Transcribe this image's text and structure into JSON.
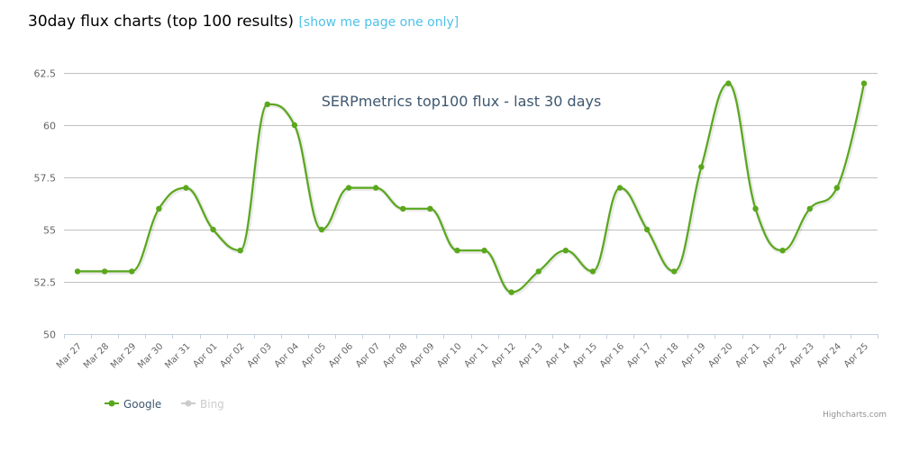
{
  "header": {
    "title": "30day flux charts (top 100 results)",
    "link_label": "[show me page one only]"
  },
  "colors": {
    "google": "#5aa71c",
    "bing_disabled": "#cccccc",
    "grid": "#c0c0c0",
    "axis": "#c0d0e0",
    "link": "#4fc1e9",
    "title_text": "#3e576f",
    "label_text": "#666666"
  },
  "credits": "Highcharts.com",
  "chart_data": {
    "type": "line",
    "title": "SERPmetrics top100 flux - last 30 days",
    "xlabel": "",
    "ylabel": "",
    "ylim": [
      50,
      62.5
    ],
    "yticks": [
      50,
      52.5,
      55,
      57.5,
      60,
      62.5
    ],
    "grid": true,
    "legend_position": "bottom-left",
    "categories": [
      "Mar 27",
      "Mar 28",
      "Mar 29",
      "Mar 30",
      "Mar 31",
      "Apr 01",
      "Apr 02",
      "Apr 03",
      "Apr 04",
      "Apr 05",
      "Apr 06",
      "Apr 07",
      "Apr 08",
      "Apr 09",
      "Apr 10",
      "Apr 11",
      "Apr 12",
      "Apr 13",
      "Apr 14",
      "Apr 15",
      "Apr 16",
      "Apr 17",
      "Apr 18",
      "Apr 19",
      "Apr 20",
      "Apr 21",
      "Apr 22",
      "Apr 23",
      "Apr 24",
      "Apr 25"
    ],
    "series": [
      {
        "name": "Google",
        "visible": true,
        "values": [
          53,
          53,
          53,
          56,
          57,
          55,
          54,
          61,
          60,
          55,
          57,
          57,
          56,
          56,
          54,
          54,
          52,
          53,
          54,
          53,
          57,
          55,
          53,
          58,
          62,
          56,
          54,
          56,
          57,
          62
        ]
      },
      {
        "name": "Bing",
        "visible": false,
        "values": []
      }
    ]
  },
  "legend": {
    "items": [
      {
        "label": "Google",
        "active": true
      },
      {
        "label": "Bing",
        "active": false
      }
    ]
  }
}
